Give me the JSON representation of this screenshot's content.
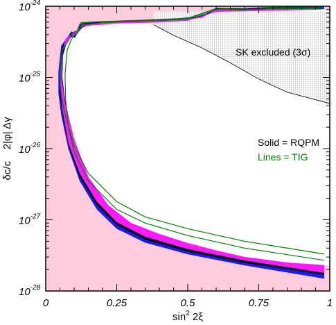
{
  "chart_data": {
    "type": "area",
    "xlabel": "sin² 2ξ",
    "ylabel": "δc/c    2|φ| Δγ",
    "xlim": [
      0,
      1
    ],
    "ylim": [
      1e-28,
      1e-24
    ],
    "ylog": true,
    "x_ticks": [
      "0",
      "0.25",
      "0.5",
      "0.75",
      "1"
    ],
    "y_ticks": [
      {
        "base": "10",
        "exp": "-28"
      },
      {
        "base": "10",
        "exp": "-27"
      },
      {
        "base": "10",
        "exp": "-26"
      },
      {
        "base": "10",
        "exp": "-25"
      },
      {
        "base": "10",
        "exp": "-24"
      }
    ],
    "annotations": {
      "sk_excluded": "SK excluded (3σ)",
      "solid": "Solid = RQPM",
      "lines": "Lines = TIG"
    },
    "colors": {
      "allowed_background": "#ffccdd",
      "band_blue": "#1a1aff",
      "band_black": "#000000",
      "band_magenta": "#ff1aff",
      "tig_lines": "#008000",
      "sk_region": "#e6e6e6"
    },
    "series": [
      {
        "role": "blue-band",
        "x": [
          0.98,
          0.7,
          0.5,
          0.35,
          0.25,
          0.18,
          0.12,
          0.08,
          0.055,
          0.045,
          0.045,
          0.055,
          0.075,
          0.09,
          0.1,
          0.11,
          0.12,
          0.2,
          0.4,
          0.55,
          0.6,
          0.7,
          0.8,
          0.98,
          0.98,
          0.75,
          0.6,
          0.5,
          0.4,
          0.25,
          0.15,
          0.128,
          0.112,
          0.102,
          0.095,
          0.075,
          0.06,
          0.058,
          0.07,
          0.1,
          0.15,
          0.22,
          0.3,
          0.4,
          0.5,
          0.6,
          0.7,
          0.85,
          0.98
        ],
        "y": [
          1.5e-28,
          2.3e-28,
          3.3e-28,
          4.8e-28,
          7.5e-28,
          1.4e-27,
          3.5e-27,
          1e-26,
          3e-26,
          6e-26,
          1.2e-25,
          2.8e-25,
          3.6e-25,
          4.4e-25,
          4.2e-25,
          4.5e-25,
          5.7e-25,
          6.1e-25,
          6.4e-25,
          7.2e-25,
          9.5e-25,
          9.2e-25,
          9.7e-25,
          9.6e-25,
          9.2e-25,
          8.8e-25,
          8.6e-25,
          6.5e-25,
          6e-25,
          5.8e-25,
          5.4e-25,
          5e-25,
          4.2e-25,
          3.6e-25,
          3.8e-25,
          3.3e-25,
          2e-25,
          1e-25,
          4e-26,
          1.2e-26,
          3.5e-27,
          1.4e-27,
          8e-28,
          5.5e-28,
          4e-28,
          3.2e-28,
          2.6e-28,
          2.2e-28,
          2.1e-28
        ]
      },
      {
        "role": "black-band",
        "x": [
          0.98,
          0.7,
          0.5,
          0.35,
          0.25,
          0.18,
          0.12,
          0.08,
          0.058,
          0.05,
          0.05,
          0.058,
          0.078,
          0.092,
          0.103,
          0.113,
          0.123,
          0.2,
          0.4,
          0.55,
          0.6,
          0.7,
          0.8,
          0.97,
          0.97,
          0.75,
          0.6,
          0.5,
          0.4,
          0.25,
          0.15,
          0.125,
          0.11,
          0.1,
          0.093,
          0.073,
          0.058,
          0.056,
          0.07,
          0.1,
          0.15,
          0.22,
          0.3,
          0.4,
          0.5,
          0.6,
          0.7,
          0.85,
          0.98
        ],
        "y": [
          1.7e-28,
          2.5e-28,
          3.6e-28,
          5.3e-28,
          8.5e-28,
          1.6e-27,
          4e-27,
          1.1e-26,
          3.2e-26,
          6.2e-26,
          1.2e-25,
          2.7e-25,
          3.5e-25,
          4.3e-25,
          4.1e-25,
          4.4e-25,
          5.6e-25,
          6e-25,
          6.3e-25,
          7e-25,
          9.3e-25,
          9.1e-25,
          9.5e-25,
          9.4e-25,
          9.1e-25,
          8.7e-25,
          8.5e-25,
          6.4e-25,
          6e-25,
          5.8e-25,
          5.4e-25,
          5.1e-25,
          4.3e-25,
          3.7e-25,
          3.9e-25,
          3.4e-25,
          2e-25,
          1e-25,
          4.2e-26,
          1.3e-26,
          3.8e-27,
          1.5e-27,
          8.6e-28,
          6e-28,
          4.4e-28,
          3.5e-28,
          2.8e-28,
          2.35e-28,
          2.2e-28
        ]
      },
      {
        "role": "magenta-band",
        "x": [
          0.98,
          0.7,
          0.5,
          0.35,
          0.25,
          0.18,
          0.12,
          0.08,
          0.06,
          0.053,
          0.053,
          0.06,
          0.08,
          0.094,
          0.105,
          0.115,
          0.125,
          0.2,
          0.4,
          0.55,
          0.6,
          0.7,
          0.8,
          0.96,
          0.96,
          0.75,
          0.6,
          0.5,
          0.4,
          0.25,
          0.15,
          0.122,
          0.108,
          0.098,
          0.09,
          0.07,
          0.056,
          0.055,
          0.068,
          0.1,
          0.15,
          0.22,
          0.3,
          0.4,
          0.5,
          0.6,
          0.7,
          0.85,
          0.98
        ],
        "y": [
          1.8e-28,
          2.7e-28,
          3.9e-28,
          5.8e-28,
          9.3e-28,
          1.8e-27,
          4.5e-27,
          1.2e-26,
          3.4e-26,
          6.4e-26,
          1.2e-25,
          2.6e-25,
          3.4e-25,
          4.2e-25,
          4e-25,
          4.3e-25,
          5.5e-25,
          5.9e-25,
          6.2e-25,
          6.9e-25,
          9.1e-25,
          9e-25,
          9.3e-25,
          9.2e-25,
          9e-25,
          8.6e-25,
          8.4e-25,
          6.3e-25,
          5.95e-25,
          5.75e-25,
          5.35e-25,
          5.1e-25,
          4.4e-25,
          3.8e-25,
          4e-25,
          3.5e-25,
          2.05e-25,
          1e-25,
          4.3e-26,
          1.35e-26,
          4e-27,
          1.6e-27,
          9e-28,
          6.3e-28,
          4.7e-28,
          3.7e-28,
          3e-28,
          2.5e-28,
          2.3e-28
        ]
      },
      {
        "role": "tig-line-inner",
        "x": [
          0.98,
          0.7,
          0.5,
          0.35,
          0.25,
          0.15,
          0.1,
          0.08,
          0.07,
          0.068,
          0.075,
          0.09,
          0.1,
          0.11,
          0.125,
          0.2,
          0.35,
          0.5,
          0.6,
          0.7,
          0.8,
          0.97
        ],
        "y": [
          2.7e-28,
          4e-28,
          6e-28,
          9e-28,
          1.4e-27,
          3.5e-27,
          9e-27,
          2e-26,
          5e-26,
          1.1e-25,
          2.4e-25,
          3.4e-25,
          3.9e-25,
          4.1e-25,
          5.4e-25,
          5.9e-25,
          6.2e-25,
          6.6e-25,
          9e-25,
          8.9e-25,
          9.2e-25,
          9.3e-25
        ]
      },
      {
        "role": "tig-line-outer",
        "x": [
          0.98,
          0.7,
          0.5,
          0.35,
          0.25,
          0.15,
          0.1,
          0.07,
          0.055,
          0.05,
          0.052,
          0.06,
          0.08,
          0.095,
          0.11,
          0.125,
          0.2,
          0.35,
          0.5,
          0.6,
          0.7,
          0.8,
          0.98
        ],
        "y": [
          3.3e-28,
          5e-28,
          7.5e-28,
          1.1e-27,
          1.8e-27,
          4.5e-27,
          1.1e-26,
          2.8e-26,
          5.5e-26,
          9e-26,
          1.5e-25,
          2.5e-25,
          3.3e-25,
          4.3e-25,
          4.5e-25,
          5.9e-25,
          6.1e-25,
          6.4e-25,
          6.8e-25,
          9.3e-25,
          9.4e-25,
          9.7e-25,
          9.8e-25
        ]
      }
    ],
    "sk_boundary": {
      "x": [
        0.38,
        0.45,
        0.55,
        0.65,
        0.75,
        0.85,
        1.0
      ],
      "y": [
        5.5e-25,
        3.9e-25,
        2.6e-25,
        1.6e-25,
        9.5e-26,
        6.2e-26,
        4.3e-26
      ]
    }
  }
}
